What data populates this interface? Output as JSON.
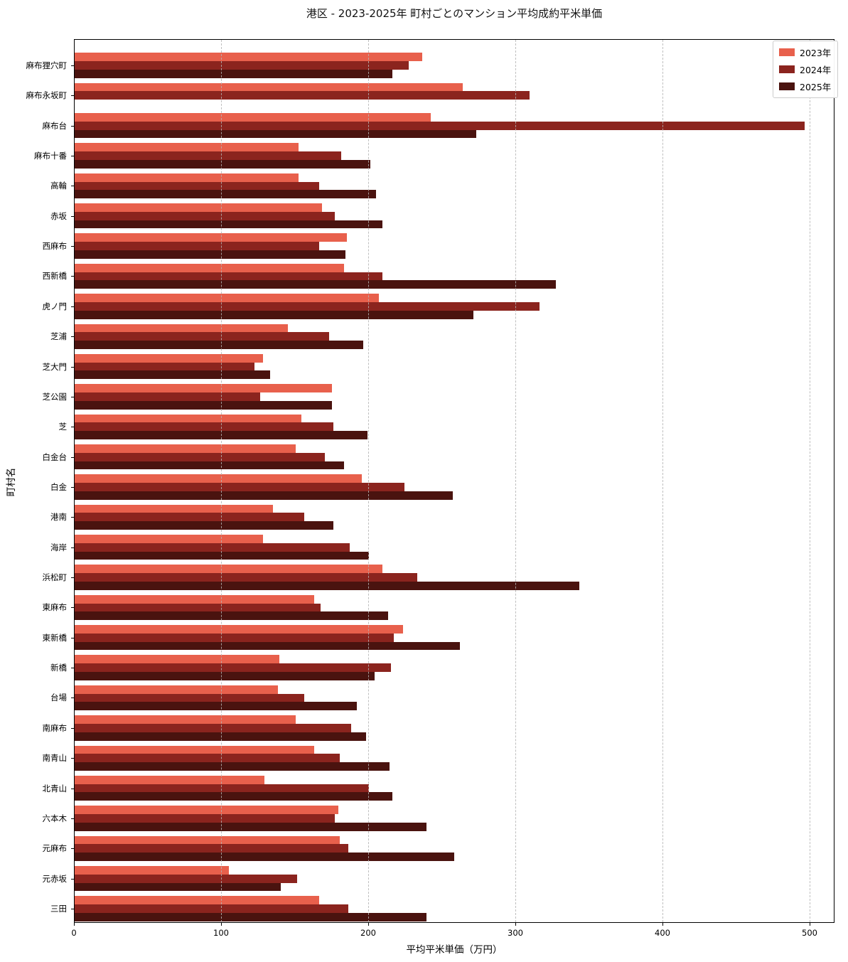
{
  "title": "港区 - 2023-2025年 町村ごとのマンション平均成約平米単価",
  "chart_data": {
    "type": "bar",
    "orientation": "horizontal",
    "title": "港区 - 2023-2025年 町村ごとのマンション平均成約平米単価",
    "xlabel": "平均平米単価（万円）",
    "ylabel": "町村名",
    "xlim": [
      0,
      517
    ],
    "x_ticks": [
      0,
      100,
      200,
      300,
      400,
      500
    ],
    "grid": true,
    "legend_position": "upper right",
    "categories": [
      "麻布狸穴町",
      "麻布永坂町",
      "麻布台",
      "麻布十番",
      "高輪",
      "赤坂",
      "西麻布",
      "西新橋",
      "虎ノ門",
      "芝浦",
      "芝大門",
      "芝公園",
      "芝",
      "白金台",
      "白金",
      "港南",
      "海岸",
      "浜松町",
      "東麻布",
      "東新橋",
      "新橋",
      "台場",
      "南麻布",
      "南青山",
      "北青山",
      "六本木",
      "元麻布",
      "元赤坂",
      "三田"
    ],
    "series": [
      {
        "name": "2023年",
        "color": "#E8604C",
        "values": [
          236,
          264,
          242,
          152,
          152,
          168,
          185,
          183,
          207,
          145,
          128,
          175,
          154,
          150,
          195,
          135,
          128,
          209,
          163,
          223,
          139,
          138,
          150,
          163,
          129,
          179,
          180,
          105,
          166
        ]
      },
      {
        "name": "2024年",
        "color": "#8B241E",
        "values": [
          227,
          309,
          496,
          181,
          166,
          177,
          166,
          209,
          316,
          173,
          122,
          126,
          176,
          170,
          224,
          156,
          187,
          233,
          167,
          217,
          215,
          156,
          188,
          180,
          200,
          177,
          186,
          151,
          186
        ]
      },
      {
        "name": "2025年",
        "color": "#4A130F",
        "values": [
          216,
          null,
          273,
          201,
          205,
          209,
          184,
          327,
          271,
          196,
          133,
          175,
          199,
          183,
          257,
          176,
          200,
          343,
          213,
          262,
          204,
          192,
          198,
          214,
          216,
          239,
          258,
          140,
          239
        ]
      }
    ]
  }
}
